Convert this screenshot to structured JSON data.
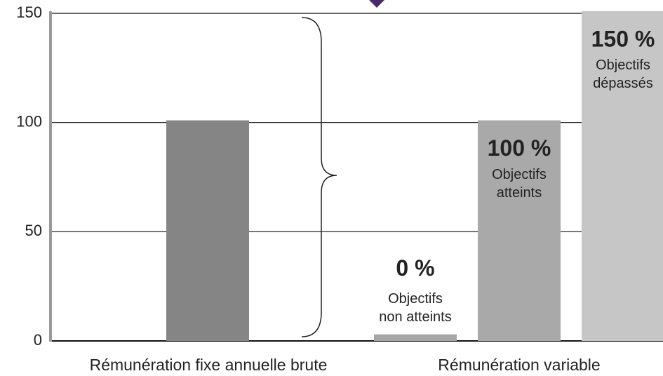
{
  "chart_data": {
    "type": "bar",
    "ylim": [
      0,
      150
    ],
    "yticks": [
      0,
      50,
      100,
      150
    ],
    "grid": true,
    "groups": [
      {
        "name": "Rémunération fixe annuelle brute",
        "bars": [
          {
            "value": 101,
            "color": "#858585"
          }
        ]
      },
      {
        "name": "Rémunération variable",
        "bars": [
          {
            "value": 3,
            "color": "#a6a6a6",
            "heading": "0 %",
            "caption": [
              "Objectifs",
              "non atteints"
            ]
          },
          {
            "value": 101,
            "color": "#a9a9a9",
            "heading": "100 %",
            "caption": [
              "Objectifs",
              "atteints"
            ]
          },
          {
            "value": 151,
            "color": "#c6c6c6",
            "heading": "150 %",
            "caption": [
              "Objectifs",
              "dépassés"
            ]
          }
        ]
      }
    ]
  }
}
